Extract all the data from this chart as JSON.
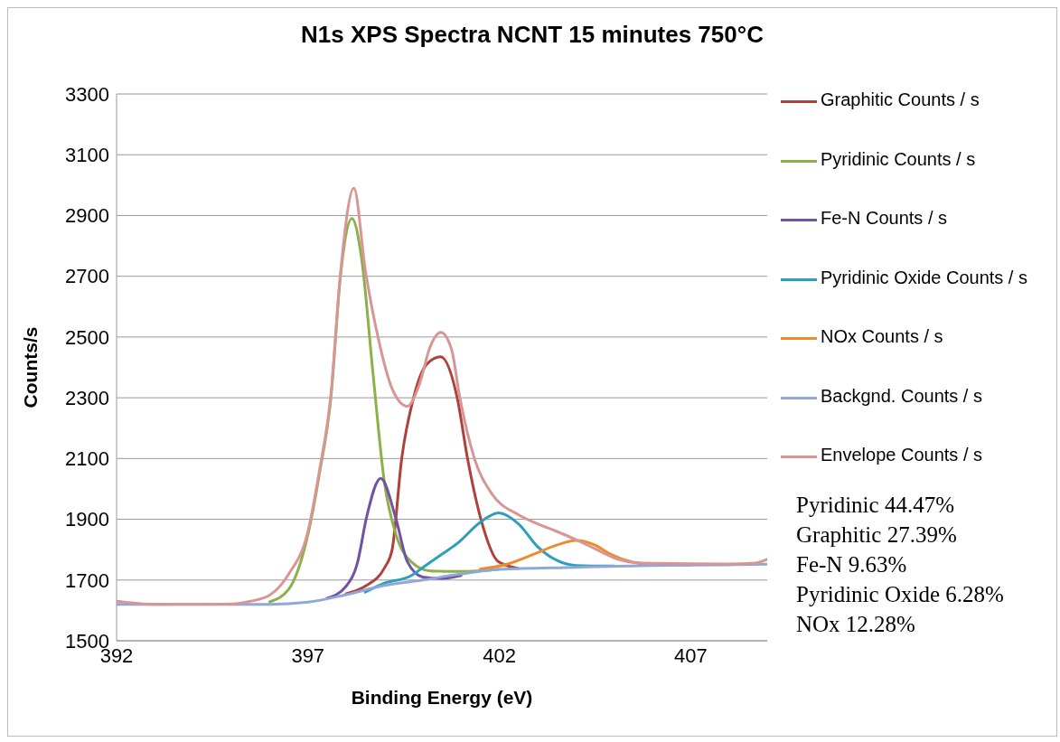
{
  "chart_data": {
    "type": "line",
    "title": "N1s XPS Spectra NCNT 15 minutes 750°C",
    "xlabel": "Binding Energy (eV)",
    "ylabel": "Counts/s",
    "xlim": [
      392,
      409
    ],
    "xticks": [
      392,
      397,
      402,
      407
    ],
    "ylim": [
      1500,
      3300
    ],
    "yticks": [
      1500,
      1700,
      1900,
      2100,
      2300,
      2500,
      2700,
      2900,
      3100,
      3300
    ],
    "grid": "y",
    "legend": "right",
    "marker": "none",
    "line_style": "solid",
    "series": [
      {
        "name": "Graphitic Counts / s",
        "color": "#b0403c",
        "x": [
          398,
          398.5,
          399,
          399.2,
          399.45,
          399.76,
          400.1,
          400.47,
          400.9,
          401.17,
          401.52,
          401.98,
          402.5
        ],
        "values": [
          1655,
          1680,
          1740,
          1800,
          2100,
          2300,
          2410,
          2435,
          2300,
          2100,
          1900,
          1760,
          1738
        ]
      },
      {
        "name": "Pyridinic Counts / s",
        "color": "#8cb04a",
        "x": [
          396,
          396.5,
          397,
          397.3,
          397.6,
          397.85,
          398.15,
          398.4,
          398.7,
          399,
          399.3,
          399.7,
          400.2,
          401,
          402
        ],
        "values": [
          1628,
          1670,
          1850,
          2050,
          2300,
          2700,
          2890,
          2760,
          2380,
          2020,
          1850,
          1760,
          1730,
          1728,
          1736
        ]
      },
      {
        "name": "Fe-N Counts / s",
        "color": "#7054a0",
        "x": [
          397.5,
          398,
          398.3,
          398.53,
          398.9,
          399.29,
          399.6,
          400,
          400.5,
          401
        ],
        "values": [
          1640,
          1680,
          1760,
          1906,
          2035,
          1906,
          1760,
          1710,
          1705,
          1715
        ]
      },
      {
        "name": "Pyridinic Oxide Counts / s",
        "color": "#2e9fb8",
        "x": [
          398.5,
          399,
          399.66,
          400.1,
          400.5,
          400.9,
          401.5,
          401.98,
          402.5,
          403,
          403.5,
          404,
          405
        ],
        "values": [
          1660,
          1690,
          1712,
          1750,
          1785,
          1820,
          1890,
          1921,
          1885,
          1810,
          1765,
          1748,
          1746
        ]
      },
      {
        "name": "NOx Counts / s",
        "color": "#ee8a2e",
        "x": [
          401.5,
          402.2,
          402.9,
          403.5,
          404,
          404.5,
          404.9,
          405.5,
          406,
          407
        ],
        "values": [
          1736,
          1752,
          1785,
          1815,
          1830,
          1815,
          1785,
          1758,
          1750,
          1750
        ]
      },
      {
        "name": "Backgnd. Counts / s",
        "color": "#8fa8d8",
        "x": [
          392,
          396,
          397,
          398,
          399,
          400,
          401,
          402,
          404,
          406,
          408,
          409
        ],
        "values": [
          1620,
          1620,
          1627,
          1652,
          1682,
          1700,
          1720,
          1735,
          1742,
          1748,
          1750,
          1752
        ]
      },
      {
        "name": "Envelope Counts / s",
        "color": "#d89594",
        "x": [
          392,
          393,
          395,
          395.5,
          396,
          396.5,
          397,
          397.3,
          397.6,
          397.85,
          398.2,
          398.5,
          398.83,
          399.2,
          399.6,
          399.9,
          400.2,
          400.47,
          400.75,
          400.97,
          401.35,
          401.8,
          402.5,
          403,
          403.5,
          404,
          404.5,
          405,
          405.5,
          406,
          407,
          408,
          408.7,
          409
        ],
        "values": [
          1630,
          1620,
          1621,
          1630,
          1650,
          1720,
          1860,
          2060,
          2310,
          2710,
          2990,
          2720,
          2500,
          2330,
          2272,
          2340,
          2470,
          2515,
          2460,
          2300,
          2100,
          1985,
          1915,
          1885,
          1860,
          1833,
          1803,
          1773,
          1758,
          1755,
          1754,
          1753,
          1756,
          1768
        ]
      }
    ],
    "annotations": [
      "Pyridinic 44.47%",
      "Graphitic 27.39%",
      "Fe-N 9.63%",
      "Pyridinic Oxide 6.28%",
      "NOx 12.28%"
    ]
  }
}
